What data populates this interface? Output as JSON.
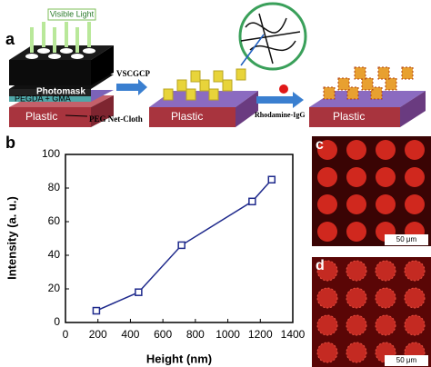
{
  "chart_data": {
    "type": "line",
    "panel_label": "b",
    "x": [
      190,
      450,
      715,
      1150,
      1270
    ],
    "series": [
      {
        "color": "#1f2a8c",
        "values": [
          7,
          18,
          46,
          72,
          85
        ]
      }
    ],
    "xlim": [
      0,
      1400
    ],
    "xticks": [
      0,
      200,
      400,
      600,
      800,
      1000,
      1200,
      1400
    ],
    "ylim": [
      0,
      100
    ],
    "yticks": [
      0,
      20,
      40,
      60,
      80,
      100
    ],
    "xlabel": "Height (nm)",
    "ylabel": "Intensity (a. u.)"
  },
  "schematic": {
    "panel_label": "a",
    "light": "Visible Light",
    "photomask": "Photomask",
    "monomer": "PEGDA + GMA",
    "substrate_1": "Plastic",
    "cloth": "PEG Net-Cloth",
    "step_1": "VSCGCP",
    "substrate_2": "Plastic",
    "step_2": "Rhodamine-IgG",
    "substrate_3": "Plastic"
  },
  "images": [
    {
      "panel_label": "c",
      "scale": "50 μm"
    },
    {
      "panel_label": "d",
      "scale": "50 μm"
    }
  ]
}
